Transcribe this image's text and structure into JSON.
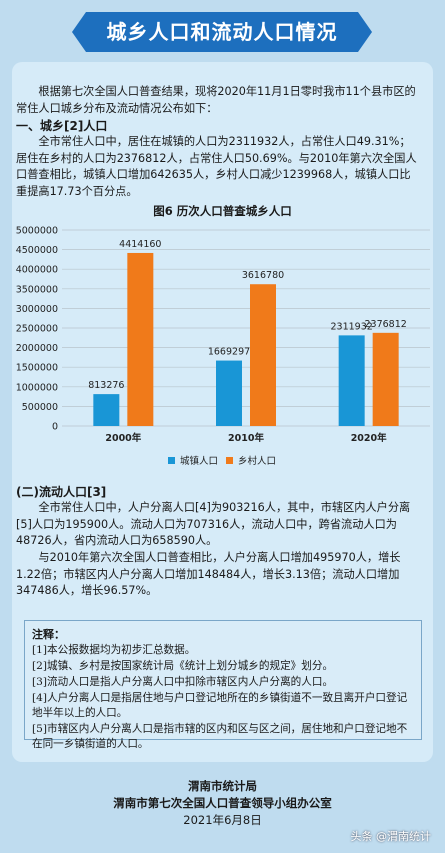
{
  "title": "城乡人口和流动人口情况",
  "intro": "根据第七次全国人口普查结果，现将2020年11月1日零时我市11个县市区的常住人口城乡分布及流动情况公布如下：",
  "section1": {
    "heading": "一、城乡[2]人口",
    "body": "全市常住人口中，居住在城镇的人口为2311932人，占常住人口49.31%；居住在乡村的人口为2376812人，占常住人口50.69%。与2010年第六次全国人口普查相比，城镇人口增加642635人，乡村人口减少1239968人，城镇人口比重提高17.73个百分点。"
  },
  "chart_title": "图6  历次人口普查城乡人口",
  "chart_data": {
    "type": "bar",
    "categories": [
      "2000年",
      "2010年",
      "2020年"
    ],
    "series": [
      {
        "name": "城镇人口",
        "values": [
          813276,
          1669297,
          2311932
        ],
        "color": "#1996d6"
      },
      {
        "name": "乡村人口",
        "values": [
          4414160,
          3616780,
          2376812
        ],
        "color": "#f07a1a"
      }
    ],
    "y_ticks": [
      "0",
      "500000",
      "1000000",
      "1500000",
      "2000000",
      "2500000",
      "3000000",
      "3500000",
      "4000000",
      "4500000",
      "5000000"
    ],
    "ylim": [
      0,
      5000000
    ],
    "legend_position": "bottom",
    "grid": true
  },
  "section2": {
    "heading": "(二)流动人口[3]",
    "body1": "全市常住人口中，人户分离人口[4]为903216人，其中，市辖区内人户分离[5]人口为195900人。流动人口为707316人，流动人口中，跨省流动人口为48726人，省内流动人口为658590人。",
    "body2": "与2010年第六次全国人口普查相比，人户分离人口增加495970人，增长1.22倍；市辖区内人户分离人口增加148484人，增长3.13倍；流动人口增加347486人，增长96.57%。"
  },
  "notes": {
    "title": "注释：",
    "items": [
      "[1]本公报数据均为初步汇总数据。",
      "[2]城镇、乡村是按国家统计局《统计上划分城乡的规定》划分。",
      "[3]流动人口是指人户分离人口中扣除市辖区内人户分离的人口。",
      "[4]人户分离人口是指居住地与户口登记地所在的乡镇街道不一致且离开户口登记地半年以上的人口。",
      "[5]市辖区内人户分离人口是指市辖的区内和区与区之间，居住地和户口登记地不在同一乡镇街道的人口。"
    ]
  },
  "footer": {
    "org1": "渭南市统计局",
    "org2": "渭南市第七次全国人口普查领导小组办公室",
    "date": "2021年6月8日"
  },
  "watermark": "头条 @渭南统计"
}
